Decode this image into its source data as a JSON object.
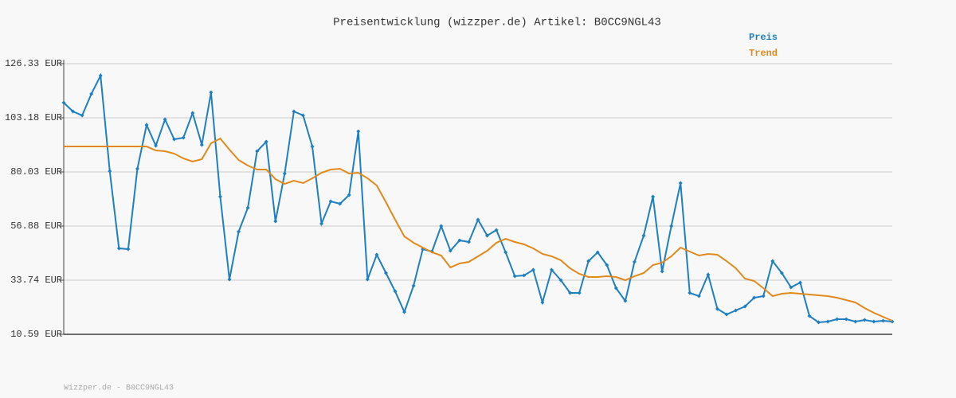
{
  "chart_data": {
    "type": "line",
    "title": "Preisentwicklung (wizzper.de) Artikel: B0CC9NGL43",
    "footer": "Wizzper.de - B0CC9NGL43",
    "ylim": [
      10.59,
      126.33
    ],
    "yticks": [
      {
        "value": 10.59,
        "label": "10.59 EUR"
      },
      {
        "value": 33.74,
        "label": "33.74 EUR"
      },
      {
        "value": 56.88,
        "label": "56.88 EUR"
      },
      {
        "value": 80.03,
        "label": "80.03 EUR"
      },
      {
        "value": 103.18,
        "label": "103.18 EUR"
      },
      {
        "value": 126.33,
        "label": "126.33 EUR"
      }
    ],
    "grid": true,
    "legend": "top-right",
    "series": [
      {
        "name": "Preis",
        "color": "#1f7fc0",
        "markers": true,
        "values": [
          109.65,
          105.9,
          104.2,
          113.39,
          121.22,
          80.37,
          47.35,
          47.01,
          81.39,
          100.12,
          91.26,
          102.5,
          93.99,
          94.67,
          105.22,
          91.61,
          114.07,
          69.48,
          34.08,
          54.5,
          64.71,
          88.88,
          92.97,
          58.93,
          79.35,
          105.9,
          104.2,
          90.92,
          57.91,
          67.44,
          66.42,
          70.16,
          97.39,
          34.08,
          44.63,
          36.8,
          28.97,
          20.12,
          31.35,
          47.01,
          45.99,
          56.88,
          46.33,
          50.76,
          50.08,
          59.61,
          52.8,
          55.18,
          45.65,
          35.44,
          35.78,
          38.16,
          24.21,
          38.16,
          33.74,
          28.29,
          28.29,
          41.91,
          45.65,
          40.2,
          30.33,
          24.89,
          41.57,
          52.8,
          69.48,
          37.48,
          56.88,
          75.27,
          28.29,
          26.93,
          36.12,
          21.48,
          19.1,
          20.8,
          22.5,
          26.25,
          26.93,
          41.91,
          36.8,
          30.67,
          32.72,
          18.42,
          15.7,
          16.04,
          17.06,
          17.06,
          16.04,
          16.72,
          16.04,
          16.38,
          16.04
        ]
      },
      {
        "name": "Trend",
        "color": "#e08a1e",
        "markers": false,
        "values": [
          90.92,
          90.92,
          90.92,
          90.92,
          90.92,
          90.92,
          90.92,
          90.92,
          90.92,
          90.92,
          89.22,
          88.88,
          87.86,
          85.82,
          84.46,
          85.48,
          92.29,
          94.33,
          89.56,
          85.14,
          82.75,
          81.05,
          81.05,
          76.97,
          74.93,
          76.29,
          75.27,
          77.31,
          79.69,
          81.05,
          81.39,
          79.35,
          79.69,
          77.31,
          74.24,
          67.1,
          59.61,
          52.46,
          49.74,
          47.69,
          45.65,
          44.29,
          39.18,
          40.89,
          41.57,
          43.95,
          46.33,
          49.74,
          51.44,
          50.08,
          49.06,
          47.35,
          44.97,
          43.95,
          42.25,
          38.84,
          36.46,
          35.1,
          35.1,
          35.44,
          35.1,
          33.74,
          35.44,
          36.8,
          40.2,
          41.23,
          43.95,
          47.69,
          45.99,
          44.29,
          44.97,
          44.63,
          41.91,
          38.84,
          34.42,
          33.4,
          30.33,
          26.93,
          27.95,
          28.29,
          27.95,
          27.61,
          27.27,
          26.93,
          26.25,
          25.23,
          24.21,
          21.82,
          19.78,
          18.08,
          16.38
        ]
      }
    ]
  }
}
